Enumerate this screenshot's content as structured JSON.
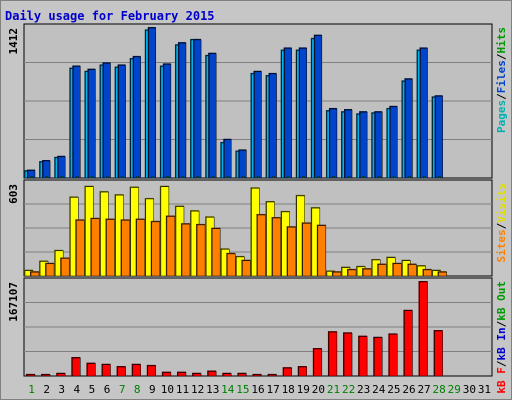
{
  "chart_data": {
    "type": "bar",
    "title": "Daily usage for February 2015",
    "days": [
      "1",
      "2",
      "3",
      "4",
      "5",
      "6",
      "7",
      "8",
      "9",
      "10",
      "11",
      "12",
      "13",
      "14",
      "15",
      "16",
      "17",
      "18",
      "19",
      "20",
      "21",
      "22",
      "23",
      "24",
      "25",
      "26",
      "27",
      "28",
      "29",
      "30",
      "31"
    ],
    "weekend_days": [
      1,
      7,
      8,
      14,
      15,
      21,
      22,
      28,
      29
    ],
    "panels": [
      {
        "name": "pages-files-hits",
        "max_label": "1412",
        "ymax": 1412,
        "series": [
          {
            "name": "Hits",
            "color": "#00b0f0",
            "values": [
              65,
              150,
              190,
              1030,
              1000,
              1060,
              1040,
              1120,
              1390,
              1050,
              1250,
              1300,
              1150,
              330,
              250,
              980,
              960,
              1200,
              1200,
              1310,
              630,
              620,
              600,
              610,
              650,
              910,
              1200,
              760,
              0,
              0,
              0
            ]
          },
          {
            "name": "Files",
            "color": "#0044cc",
            "values": [
              70,
              160,
              200,
              1050,
              1020,
              1080,
              1060,
              1140,
              1412,
              1070,
              1270,
              1300,
              1170,
              360,
              260,
              1000,
              980,
              1220,
              1220,
              1340,
              650,
              640,
              620,
              620,
              670,
              930,
              1220,
              770,
              0,
              0,
              0
            ]
          },
          {
            "name": "Pages",
            "color": "#00c8c8",
            "values": [
              5,
              5,
              5,
              5,
              5,
              5,
              5,
              5,
              5,
              5,
              5,
              5,
              5,
              5,
              5,
              5,
              5,
              5,
              5,
              5,
              5,
              5,
              5,
              5,
              5,
              5,
              5,
              5,
              0,
              0,
              0
            ]
          }
        ],
        "legend": [
          {
            "text": "Pages",
            "color": "#00b0b0"
          },
          {
            "text": "/",
            "color": "#000000"
          },
          {
            "text": "Files",
            "color": "#0044cc"
          },
          {
            "text": "/",
            "color": "#000000"
          },
          {
            "text": "Hits",
            "color": "#009900"
          }
        ]
      },
      {
        "name": "visits-sites",
        "max_label": "603",
        "ymax": 603,
        "series": [
          {
            "name": "Visits",
            "color": "#ffff00",
            "values": [
              35,
              95,
              165,
              515,
              585,
              550,
              530,
              580,
              505,
              585,
              455,
              425,
              385,
              175,
              125,
              575,
              485,
              420,
              525,
              445,
              30,
              55,
              60,
              105,
              120,
              100,
              65,
              35,
              0,
              0,
              0
            ]
          },
          {
            "name": "Sites",
            "color": "#ff8000",
            "values": [
              25,
              80,
              115,
              365,
              375,
              370,
              365,
              370,
              355,
              390,
              340,
              335,
              310,
              145,
              100,
              400,
              380,
              320,
              345,
              330,
              25,
              40,
              45,
              75,
              80,
              75,
              40,
              25,
              0,
              0,
              0
            ]
          }
        ],
        "legend": [
          {
            "text": "Sites",
            "color": "#ff8000"
          },
          {
            "text": "/",
            "color": "#000000"
          },
          {
            "text": "Visits",
            "color": "#e0e000"
          }
        ]
      },
      {
        "name": "kbytes",
        "max_label": "167107",
        "ymax": 167107,
        "series": [
          {
            "name": "kB F",
            "color": "#ff0000",
            "values": [
              2000,
              2000,
              4000,
              32000,
              22000,
              20000,
              16000,
              20000,
              18000,
              6000,
              6000,
              4000,
              8000,
              4000,
              4000,
              2000,
              2000,
              14000,
              16000,
              48000,
              78000,
              76000,
              70000,
              68000,
              74000,
              116000,
              167107,
              80000,
              0,
              0,
              0
            ]
          }
        ],
        "legend": [
          {
            "text": "kB F",
            "color": "#ff0000"
          },
          {
            "text": "/",
            "color": "#000000"
          },
          {
            "text": "kB In",
            "color": "#0000cc"
          },
          {
            "text": "/",
            "color": "#000000"
          },
          {
            "text": "kB Out",
            "color": "#009900"
          }
        ]
      }
    ]
  }
}
